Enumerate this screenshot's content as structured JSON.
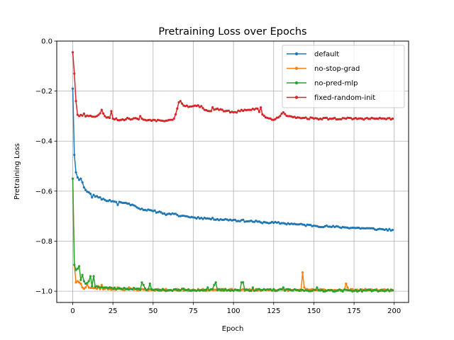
{
  "chart_data": {
    "type": "line",
    "title": "Pretraining Loss over Epochs",
    "xlabel": "Epoch",
    "ylabel": "Pretraining Loss",
    "xlim": [
      -9.95,
      208.95
    ],
    "ylim": [
      -1.045,
      0.0
    ],
    "xticks": [
      0,
      25,
      50,
      75,
      100,
      125,
      150,
      175,
      200
    ],
    "yticks": [
      -1.0,
      -0.8,
      -0.6,
      -0.4,
      -0.2,
      0.0
    ],
    "ytick_labels": [
      "−1.0",
      "−0.8",
      "−0.6",
      "−0.4",
      "−0.2",
      "0.0"
    ],
    "grid": true,
    "legend": "top-right",
    "x_start": 0,
    "x_step": 1,
    "series": [
      {
        "name": "default",
        "color": "#1f77b4",
        "keypoints": [
          [
            0,
            -0.19
          ],
          [
            1,
            -0.455
          ],
          [
            2,
            -0.525
          ],
          [
            3,
            -0.545
          ],
          [
            4,
            -0.555
          ],
          [
            5,
            -0.55
          ],
          [
            6,
            -0.565
          ],
          [
            7,
            -0.585
          ],
          [
            8,
            -0.595
          ],
          [
            10,
            -0.605
          ],
          [
            13,
            -0.615
          ],
          [
            16,
            -0.625
          ],
          [
            20,
            -0.635
          ],
          [
            25,
            -0.64
          ],
          [
            30,
            -0.645
          ],
          [
            35,
            -0.65
          ],
          [
            40,
            -0.665
          ],
          [
            45,
            -0.675
          ],
          [
            50,
            -0.68
          ],
          [
            55,
            -0.685
          ],
          [
            60,
            -0.69
          ],
          [
            65,
            -0.695
          ],
          [
            70,
            -0.7
          ],
          [
            75,
            -0.705
          ],
          [
            80,
            -0.707
          ],
          [
            85,
            -0.71
          ],
          [
            90,
            -0.712
          ],
          [
            100,
            -0.715
          ],
          [
            110,
            -0.72
          ],
          [
            120,
            -0.725
          ],
          [
            130,
            -0.728
          ],
          [
            140,
            -0.733
          ],
          [
            150,
            -0.738
          ],
          [
            160,
            -0.742
          ],
          [
            170,
            -0.745
          ],
          [
            180,
            -0.748
          ],
          [
            190,
            -0.752
          ],
          [
            199,
            -0.755
          ]
        ],
        "noise": 0.004,
        "seed": 11,
        "spikes": [
          [
            12,
            -0.625
          ],
          [
            28,
            -0.655
          ],
          [
            39,
            -0.66
          ],
          [
            44,
            -0.675
          ],
          [
            58,
            -0.695
          ],
          [
            66,
            -0.7
          ],
          [
            102,
            -0.72
          ],
          [
            117,
            -0.725
          ],
          [
            136,
            -0.73
          ]
        ]
      },
      {
        "name": "no-stop-grad",
        "color": "#ff7f0e",
        "keypoints": [
          [
            0,
            -0.55
          ],
          [
            1,
            -0.895
          ],
          [
            2,
            -0.965
          ],
          [
            3,
            -0.96
          ],
          [
            4,
            -0.965
          ],
          [
            5,
            -0.97
          ],
          [
            6,
            -0.985
          ],
          [
            7,
            -0.99
          ],
          [
            8,
            -0.985
          ],
          [
            10,
            -0.985
          ],
          [
            15,
            -0.99
          ],
          [
            20,
            -0.99
          ],
          [
            30,
            -0.992
          ],
          [
            50,
            -0.995
          ],
          [
            80,
            -0.995
          ],
          [
            120,
            -0.995
          ],
          [
            160,
            -0.995
          ],
          [
            199,
            -0.995
          ]
        ],
        "noise": 0.004,
        "seed": 23,
        "spikes": [
          [
            9,
            -0.975
          ],
          [
            16,
            -0.98
          ],
          [
            18,
            -0.975
          ],
          [
            28,
            -0.985
          ],
          [
            35,
            -0.985
          ],
          [
            68,
            -0.99
          ],
          [
            143,
            -0.925
          ],
          [
            144,
            -0.985
          ],
          [
            170,
            -0.97
          ],
          [
            171,
            -0.985
          ]
        ]
      },
      {
        "name": "no-pred-mlp",
        "color": "#2ca02c",
        "keypoints": [
          [
            0,
            -0.55
          ],
          [
            1,
            -0.895
          ],
          [
            2,
            -0.915
          ],
          [
            3,
            -0.91
          ],
          [
            4,
            -0.9
          ],
          [
            5,
            -0.955
          ],
          [
            6,
            -0.935
          ],
          [
            7,
            -0.96
          ],
          [
            8,
            -0.97
          ],
          [
            10,
            -0.96
          ],
          [
            11,
            -0.94
          ],
          [
            12,
            -0.98
          ],
          [
            15,
            -0.98
          ],
          [
            20,
            -0.985
          ],
          [
            30,
            -0.99
          ],
          [
            40,
            -0.99
          ],
          [
            50,
            -0.995
          ],
          [
            80,
            -0.995
          ],
          [
            120,
            -0.995
          ],
          [
            160,
            -0.997
          ],
          [
            199,
            -0.997
          ]
        ],
        "noise": 0.004,
        "seed": 37,
        "spikes": [
          [
            13,
            -0.94
          ],
          [
            17,
            -0.985
          ],
          [
            21,
            -0.985
          ],
          [
            43,
            -0.965
          ],
          [
            44,
            -0.975
          ],
          [
            48,
            -0.97
          ],
          [
            69,
            -0.99
          ],
          [
            84,
            -0.985
          ],
          [
            88,
            -0.975
          ],
          [
            89,
            -0.965
          ],
          [
            105,
            -0.965
          ],
          [
            106,
            -0.965
          ],
          [
            112,
            -0.985
          ],
          [
            131,
            -0.985
          ],
          [
            152,
            -0.985
          ]
        ]
      },
      {
        "name": "fixed-random-init",
        "color": "#d62728",
        "keypoints": [
          [
            0,
            -0.045
          ],
          [
            1,
            -0.13
          ],
          [
            2,
            -0.24
          ],
          [
            3,
            -0.295
          ],
          [
            4,
            -0.3
          ],
          [
            5,
            -0.295
          ],
          [
            10,
            -0.3
          ],
          [
            15,
            -0.3
          ],
          [
            18,
            -0.285
          ],
          [
            20,
            -0.3
          ],
          [
            25,
            -0.31
          ],
          [
            30,
            -0.315
          ],
          [
            35,
            -0.31
          ],
          [
            40,
            -0.31
          ],
          [
            45,
            -0.315
          ],
          [
            50,
            -0.315
          ],
          [
            55,
            -0.318
          ],
          [
            60,
            -0.315
          ],
          [
            63,
            -0.31
          ],
          [
            65,
            -0.27
          ],
          [
            66,
            -0.245
          ],
          [
            67,
            -0.24
          ],
          [
            68,
            -0.25
          ],
          [
            70,
            -0.26
          ],
          [
            75,
            -0.26
          ],
          [
            80,
            -0.26
          ],
          [
            82,
            -0.275
          ],
          [
            85,
            -0.28
          ],
          [
            90,
            -0.27
          ],
          [
            95,
            -0.28
          ],
          [
            100,
            -0.285
          ],
          [
            105,
            -0.28
          ],
          [
            110,
            -0.275
          ],
          [
            115,
            -0.27
          ],
          [
            117,
            -0.29
          ],
          [
            120,
            -0.305
          ],
          [
            125,
            -0.315
          ],
          [
            128,
            -0.305
          ],
          [
            130,
            -0.29
          ],
          [
            135,
            -0.3
          ],
          [
            140,
            -0.305
          ],
          [
            150,
            -0.31
          ],
          [
            160,
            -0.31
          ],
          [
            170,
            -0.31
          ],
          [
            180,
            -0.31
          ],
          [
            199,
            -0.31
          ]
        ],
        "noise": 0.004,
        "seed": 53,
        "spikes": [
          [
            7,
            -0.29
          ],
          [
            18,
            -0.275
          ],
          [
            24,
            -0.28
          ],
          [
            42,
            -0.3
          ],
          [
            87,
            -0.265
          ],
          [
            105,
            -0.275
          ],
          [
            117,
            -0.265
          ],
          [
            131,
            -0.285
          ]
        ]
      }
    ]
  }
}
